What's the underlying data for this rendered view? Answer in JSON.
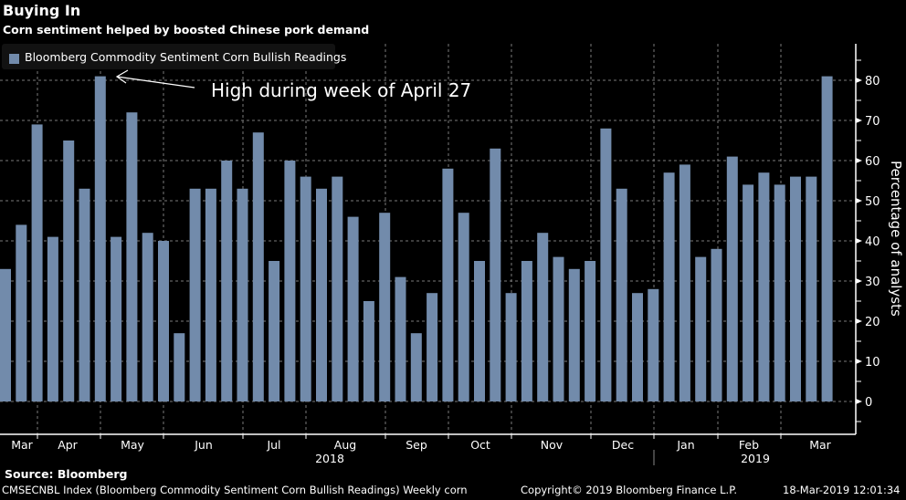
{
  "header": {
    "title": "Buying In",
    "subtitle": "Corn sentiment helped by boosted Chinese pork demand"
  },
  "footer": {
    "source": "Source: Bloomberg",
    "description": "CMSECNBL Index (Bloomberg Commodity Sentiment Corn Bullish Readings) Weekly corn",
    "copyright": "Copyright© 2019 Bloomberg Finance L.P.",
    "timestamp": "18-Mar-2019 12:01:34"
  },
  "colors": {
    "bar": "#728bab",
    "background": "#000000",
    "grid": "#7a7a7a",
    "axis": "#ffffff"
  },
  "chart_data": {
    "type": "bar",
    "title": "Buying In",
    "subtitle": "Corn sentiment helped by boosted Chinese pork demand",
    "xlabel": "",
    "ylabel": "Percentage of analysts",
    "ylim": [
      0,
      85
    ],
    "yticks": [
      0,
      10,
      20,
      30,
      40,
      50,
      60,
      70,
      80
    ],
    "grid": true,
    "y_axis_side": "right",
    "legend": {
      "placement": "top-left",
      "entries": [
        "Bloomberg Commodity Sentiment Corn Bullish Readings"
      ]
    },
    "annotation": "High during week of April 27",
    "x_month_labels": [
      "Mar",
      "Apr",
      "May",
      "Jun",
      "Jul",
      "Aug",
      "Sep",
      "Oct",
      "Nov",
      "Dec",
      "Jan",
      "Feb",
      "Mar"
    ],
    "x_year_labels": [
      "2018",
      "2019"
    ],
    "series": [
      {
        "name": "Bloomberg Commodity Sentiment Corn Bullish Readings",
        "values": [
          33,
          44,
          69,
          41,
          65,
          53,
          81,
          41,
          72,
          42,
          40,
          17,
          53,
          53,
          60,
          53,
          67,
          35,
          60,
          56,
          53,
          56,
          46,
          25,
          47,
          31,
          17,
          27,
          58,
          47,
          35,
          63,
          27,
          35,
          42,
          36,
          33,
          35,
          68,
          53,
          27,
          28,
          57,
          59,
          36,
          38,
          61,
          54,
          57,
          54,
          56,
          56,
          81
        ]
      }
    ]
  }
}
